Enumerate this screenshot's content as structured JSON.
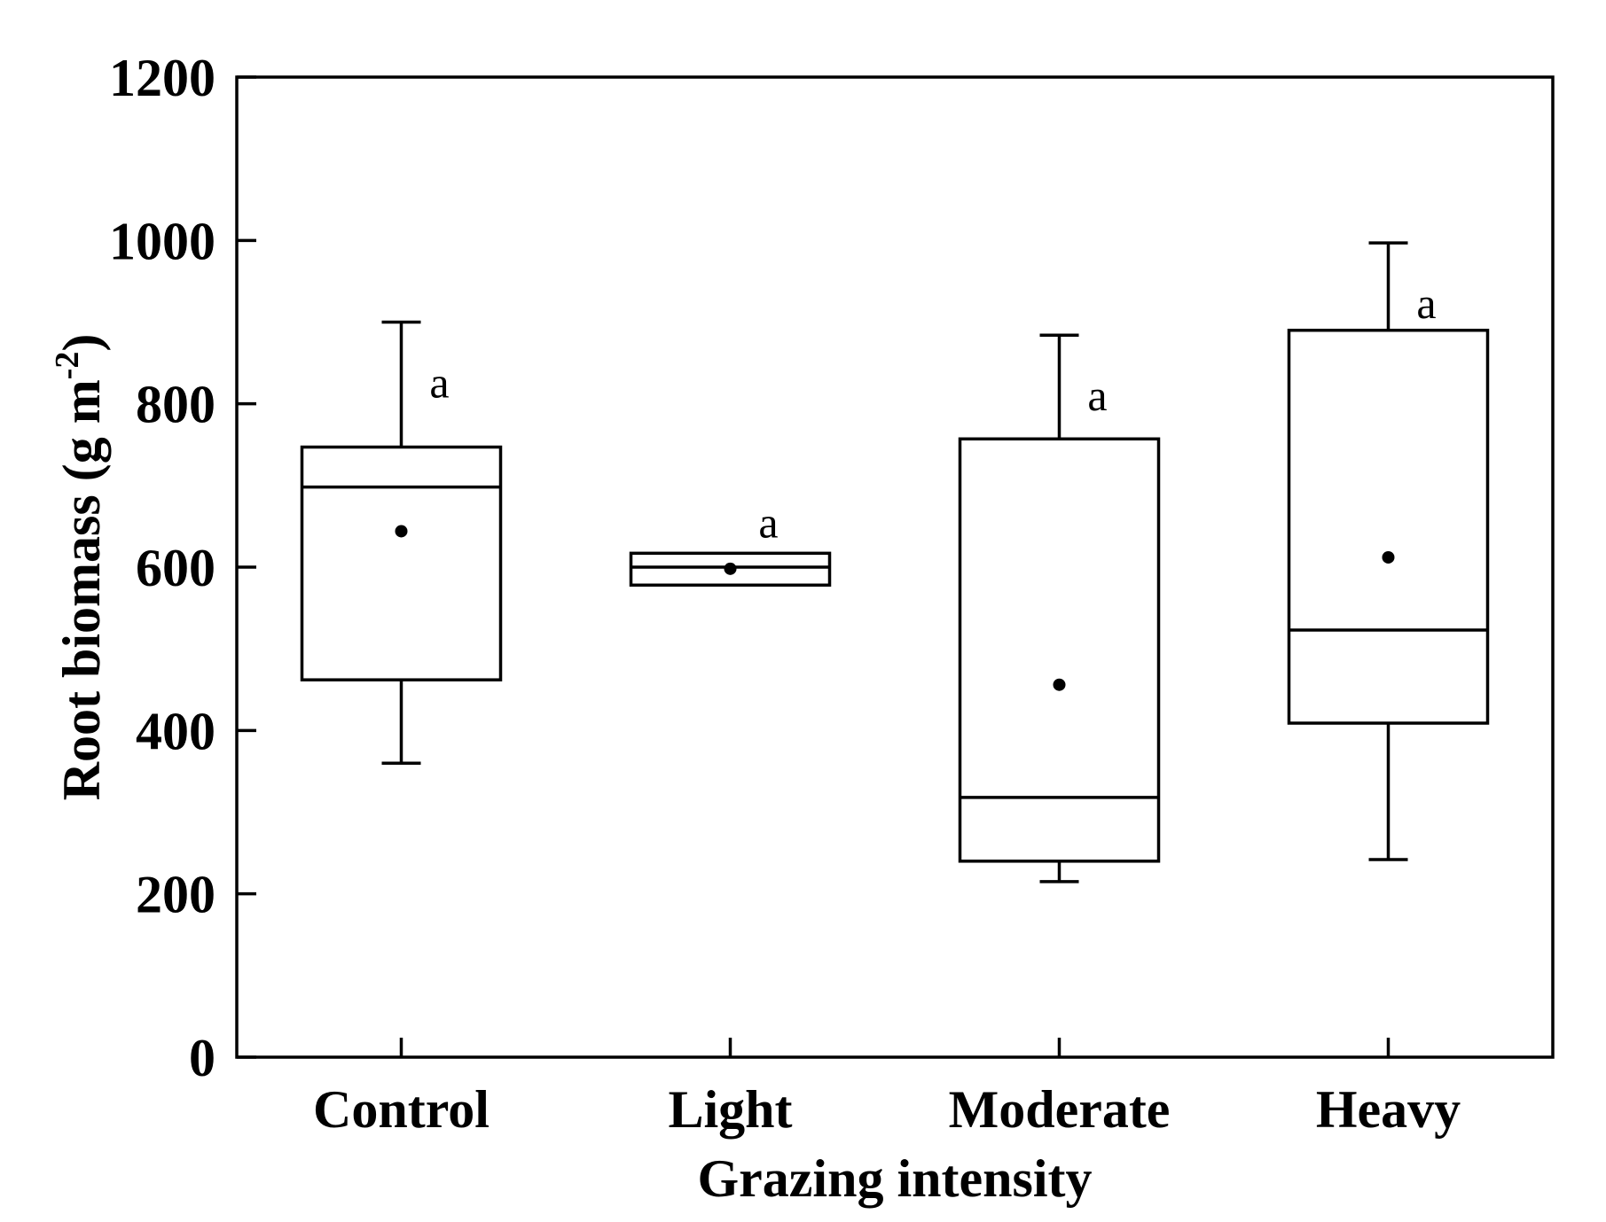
{
  "chart_data": {
    "type": "box",
    "title": "",
    "xlabel": "Grazing intensity",
    "ylabel_main": "Root biomass (g m",
    "ylabel_sup": "-2",
    "ylabel_close": ")",
    "ylim": [
      0,
      1200
    ],
    "yticks": [
      0,
      200,
      400,
      600,
      800,
      1000,
      1200
    ],
    "ytick_labels": [
      "0",
      "200",
      "400",
      "600",
      "800",
      "1000",
      "1200"
    ],
    "grid": false,
    "categories": [
      "Control",
      "Light",
      "Moderate",
      "Heavy"
    ],
    "boxes": [
      {
        "name": "Control",
        "whisker_low": 360,
        "q1": 462,
        "median": 698,
        "q3": 747,
        "whisker_high": 900,
        "mean": 644,
        "letter": "a"
      },
      {
        "name": "Light",
        "whisker_low": 578,
        "q1": 578,
        "median": 600,
        "q3": 617,
        "whisker_high": 617,
        "mean": 598,
        "letter": "a"
      },
      {
        "name": "Moderate",
        "whisker_low": 215,
        "q1": 240,
        "median": 318,
        "q3": 757,
        "whisker_high": 884,
        "mean": 456,
        "letter": "a"
      },
      {
        "name": "Heavy",
        "whisker_low": 242,
        "q1": 409,
        "median": 523,
        "q3": 890,
        "whisker_high": 997,
        "mean": 612,
        "letter": "a"
      }
    ]
  }
}
